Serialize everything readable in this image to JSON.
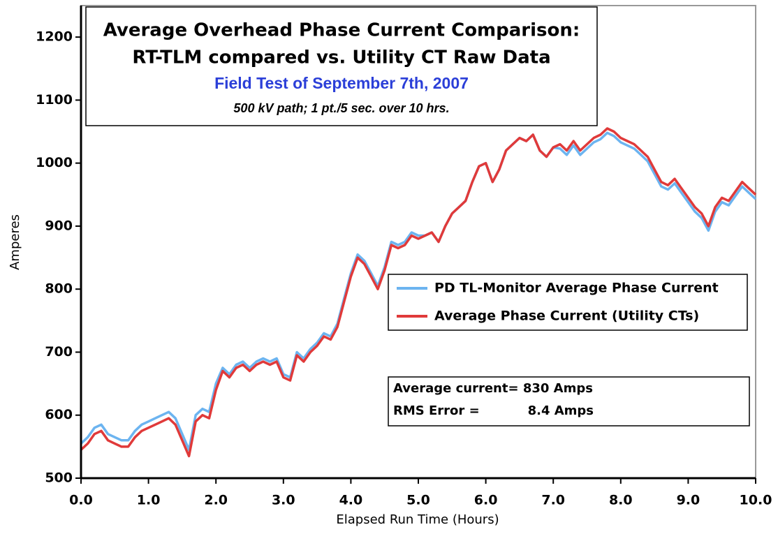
{
  "chart_data": {
    "type": "line",
    "title": [
      "Average Overhead Phase Current Comparison:",
      "RT-TLM compared vs. Utility CT Raw Data"
    ],
    "subtitle": "Field Test of September 7th, 2007",
    "note": "500 kV path; 1 pt./5 sec. over 10 hrs.",
    "xlabel": "Elapsed Run Time (Hours)",
    "ylabel": "Amperes",
    "annotations": [
      "Average current= 830 Amps",
      "RMS Error =           8.4 Amps"
    ],
    "xlim": [
      0,
      10
    ],
    "ylim": [
      500,
      1250
    ],
    "xticks": [
      {
        "value": 0,
        "label": "0.0"
      },
      {
        "value": 1,
        "label": "1.0"
      },
      {
        "value": 2,
        "label": "2.0"
      },
      {
        "value": 3,
        "label": "3.0"
      },
      {
        "value": 4,
        "label": "4.0"
      },
      {
        "value": 5,
        "label": "5.0"
      },
      {
        "value": 6,
        "label": "6.0"
      },
      {
        "value": 7,
        "label": "7.0"
      },
      {
        "value": 8,
        "label": "8.0"
      },
      {
        "value": 9,
        "label": "9.0"
      },
      {
        "value": 10,
        "label": "10.0"
      }
    ],
    "yticks": [
      500,
      600,
      700,
      800,
      900,
      1000,
      1100,
      1200
    ],
    "legend": "center-right",
    "x": [
      0,
      0.1,
      0.2,
      0.3,
      0.4,
      0.5,
      0.6,
      0.7,
      0.8,
      0.9,
      1,
      1.1,
      1.2,
      1.3,
      1.4,
      1.5,
      1.6,
      1.7,
      1.8,
      1.9,
      2,
      2.1,
      2.2,
      2.3,
      2.4,
      2.5,
      2.6,
      2.7,
      2.8,
      2.9,
      3,
      3.1,
      3.2,
      3.3,
      3.4,
      3.5,
      3.6,
      3.7,
      3.8,
      3.9,
      4,
      4.1,
      4.2,
      4.3,
      4.4,
      4.5,
      4.6,
      4.7,
      4.8,
      4.9,
      5,
      5.1,
      5.2,
      5.3,
      5.4,
      5.5,
      5.6,
      5.7,
      5.8,
      5.9,
      6,
      6.1,
      6.2,
      6.3,
      6.4,
      6.5,
      6.6,
      6.7,
      6.8,
      6.9,
      7,
      7.1,
      7.2,
      7.3,
      7.4,
      7.5,
      7.6,
      7.7,
      7.8,
      7.9,
      8,
      8.1,
      8.2,
      8.3,
      8.4,
      8.5,
      8.6,
      8.7,
      8.8,
      8.9,
      9,
      9.1,
      9.2,
      9.3,
      9.4,
      9.5,
      9.6,
      9.7,
      9.8,
      9.9,
      10
    ],
    "series": [
      {
        "name": "PD TL-Monitor Average Phase Current",
        "color": "#6cb4f0",
        "values": [
          555,
          565,
          580,
          585,
          570,
          565,
          560,
          560,
          575,
          585,
          590,
          595,
          600,
          605,
          595,
          570,
          545,
          600,
          610,
          605,
          650,
          675,
          665,
          680,
          685,
          675,
          685,
          690,
          685,
          690,
          665,
          660,
          700,
          690,
          705,
          715,
          730,
          725,
          745,
          785,
          825,
          855,
          845,
          825,
          805,
          835,
          875,
          870,
          875,
          890,
          885,
          885,
          890,
          875,
          900,
          920,
          930,
          940,
          970,
          995,
          1000,
          970,
          990,
          1020,
          1030,
          1040,
          1035,
          1045,
          1020,
          1010,
          1025,
          1023,
          1013,
          1028,
          1013,
          1023,
          1033,
          1038,
          1048,
          1043,
          1033,
          1028,
          1023,
          1013,
          1003,
          983,
          963,
          958,
          968,
          953,
          938,
          923,
          913,
          893,
          923,
          938,
          933,
          948,
          963,
          953,
          943
        ]
      },
      {
        "name": "Average Phase Current (Utility CTs)",
        "color": "#e03a3a",
        "values": [
          545,
          555,
          570,
          575,
          560,
          555,
          550,
          550,
          565,
          575,
          580,
          585,
          590,
          595,
          585,
          560,
          535,
          590,
          600,
          595,
          640,
          670,
          660,
          675,
          680,
          670,
          680,
          685,
          680,
          685,
          660,
          655,
          695,
          685,
          700,
          710,
          725,
          720,
          740,
          780,
          820,
          850,
          840,
          820,
          800,
          830,
          870,
          865,
          870,
          885,
          880,
          885,
          890,
          875,
          900,
          920,
          930,
          940,
          970,
          995,
          1000,
          970,
          990,
          1020,
          1030,
          1040,
          1035,
          1045,
          1020,
          1010,
          1025,
          1030,
          1020,
          1035,
          1020,
          1030,
          1040,
          1045,
          1055,
          1050,
          1040,
          1035,
          1030,
          1020,
          1010,
          990,
          970,
          965,
          975,
          960,
          945,
          930,
          920,
          900,
          930,
          945,
          940,
          955,
          970,
          960,
          950
        ]
      }
    ]
  }
}
